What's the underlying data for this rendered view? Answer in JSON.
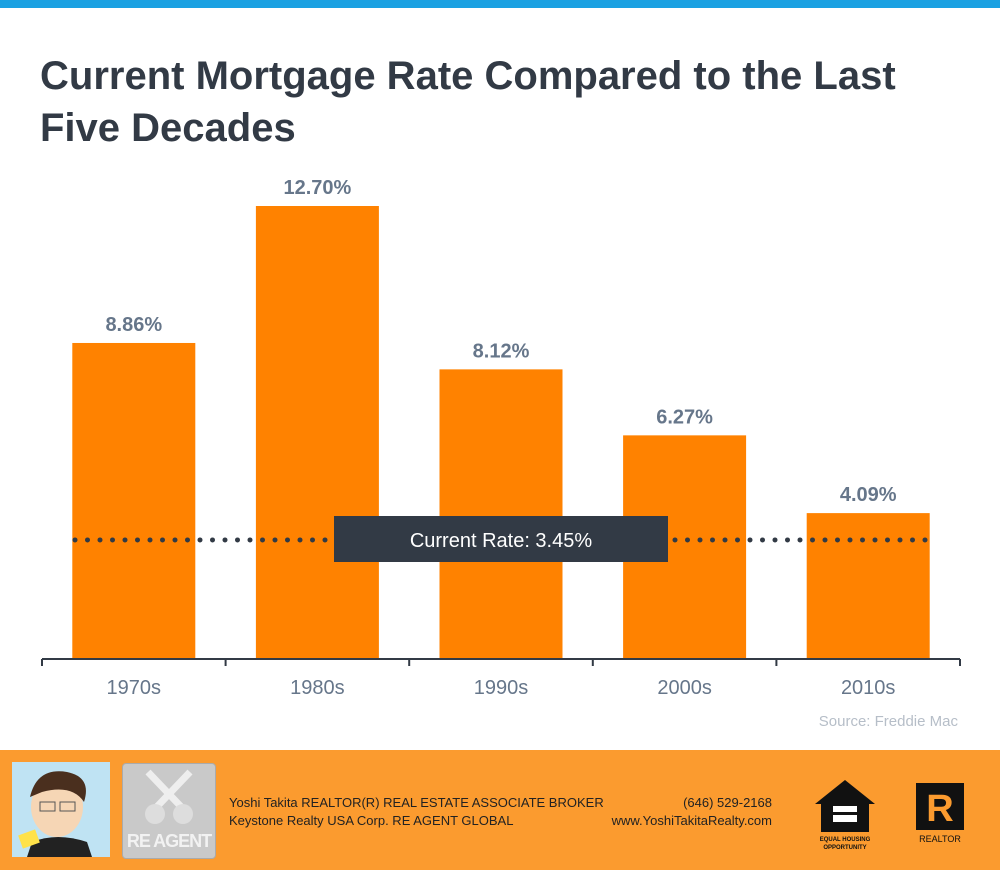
{
  "title": "Current Mortgage Rate Compared to the Last Five Decades",
  "source": "Source: Freddie Mac",
  "chart_data": {
    "type": "bar",
    "title": "Current Mortgage Rate Compared to the Last Five Decades",
    "categories": [
      "1970s",
      "1980s",
      "1990s",
      "2000s",
      "2010s"
    ],
    "values": [
      8.86,
      12.7,
      8.12,
      6.27,
      4.09
    ],
    "data_labels": [
      "8.86%",
      "12.70%",
      "8.12%",
      "6.27%",
      "4.09%"
    ],
    "reference_line": {
      "value": 3.45,
      "label": "Current Rate: 3.45%"
    },
    "ylim": [
      0,
      12.7
    ],
    "xlabel": "",
    "ylabel": "",
    "colors": {
      "bar": "#ff8200",
      "line": "#323a45",
      "label_text": "#66768a"
    }
  },
  "footer": {
    "line1": "Yoshi Takita REALTOR(R) REAL ESTATE ASSOCIATE BROKER",
    "line2": "Keystone Realty USA Corp.  RE AGENT GLOBAL",
    "phone": "(646) 529-2168",
    "website": "www.YoshiTakitaRealty.com",
    "reagent_logo": "RE AGENT",
    "eho_logo": "EQUAL HOUSING OPPORTUNITY",
    "realtor_logo": "REALTOR"
  }
}
